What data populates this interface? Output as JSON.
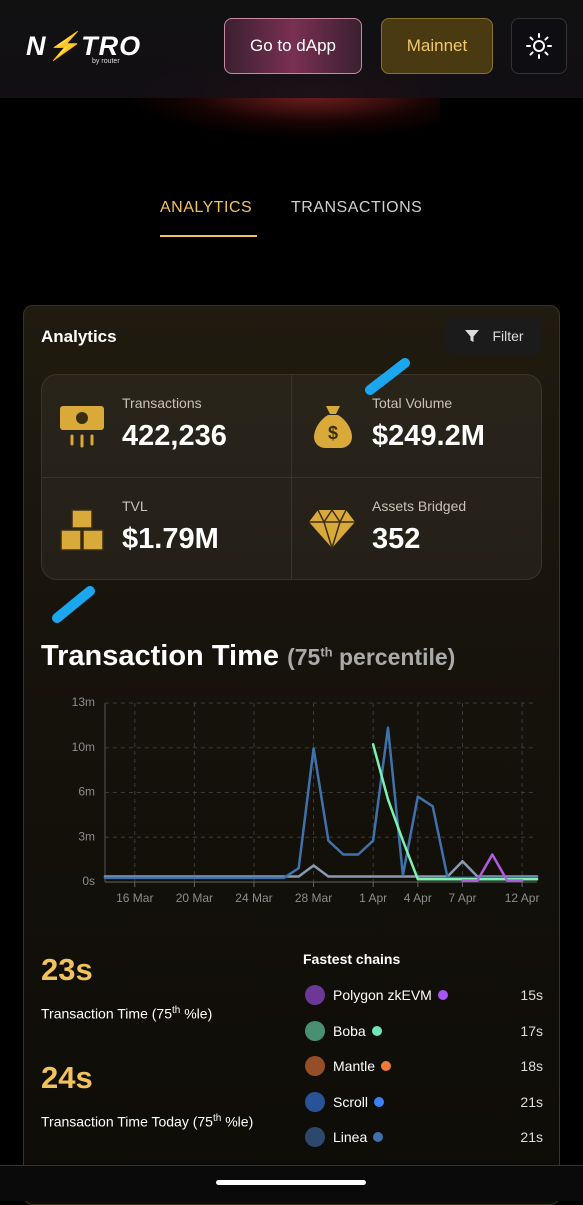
{
  "header": {
    "logo_left": "N",
    "logo_right": "TRO",
    "logo_by": "by",
    "logo_brand": "router",
    "button_dapp": "Go to dApp",
    "button_network": "Mainnet"
  },
  "tabs": [
    "ANALYTICS",
    "TRANSACTIONS"
  ],
  "card": {
    "title": "Analytics",
    "filter": "Filter",
    "stats": [
      {
        "label": "Transactions",
        "value": "422,236"
      },
      {
        "label": "Total Volume",
        "value": "$249.2M"
      },
      {
        "label": "TVL",
        "value": "$1.79M"
      },
      {
        "label": "Assets Bridged",
        "value": "352"
      }
    ]
  },
  "chart_data": {
    "type": "line",
    "title": "Transaction Time",
    "title_note_prefix": "(75",
    "title_sup": "th",
    "title_note_suffix": " percentile)",
    "categories": [
      null,
      null,
      "16 Mar",
      null,
      null,
      null,
      "20 Mar",
      null,
      null,
      null,
      "24 Mar",
      null,
      null,
      null,
      "28 Mar",
      null,
      null,
      null,
      "1 Apr",
      null,
      null,
      "4 Apr",
      null,
      null,
      "7 Apr",
      null,
      null,
      null,
      "12 Apr",
      null
    ],
    "ylim": [
      0,
      13
    ],
    "yticks": [
      {
        "value": 0,
        "label": "0s"
      },
      {
        "value": 3.25,
        "label": "3m"
      },
      {
        "value": 6.5,
        "label": "6m"
      },
      {
        "value": 9.75,
        "label": "10m"
      },
      {
        "value": 13,
        "label": "13m"
      }
    ],
    "grid": true,
    "series": [
      {
        "color": "#8a9bb0",
        "values": [
          0.4,
          0.4,
          0.4,
          0.4,
          0.4,
          0.4,
          0.4,
          0.4,
          0.4,
          0.4,
          0.4,
          0.4,
          0.4,
          0.4,
          1.2,
          0.4,
          0.4,
          0.4,
          0.4,
          0.4,
          0.4,
          0.4,
          0.4,
          0.4,
          1.5,
          0.4,
          0.4,
          0.4,
          0.4,
          0.4
        ]
      },
      {
        "color": "#3f72ad",
        "values": [
          0.3,
          0.3,
          0.3,
          0.3,
          0.3,
          0.3,
          0.3,
          0.3,
          0.3,
          0.3,
          0.3,
          0.3,
          0.3,
          1,
          9.7,
          3,
          2,
          2,
          3,
          11.2,
          0.5,
          6.2,
          5.5,
          0.3,
          0.3,
          0.3,
          0.3,
          0.3,
          0.3,
          0.3
        ]
      },
      {
        "color": "#7ef0b0",
        "values": [
          null,
          null,
          null,
          null,
          null,
          null,
          null,
          null,
          null,
          null,
          null,
          null,
          null,
          null,
          null,
          null,
          null,
          null,
          10,
          6,
          3,
          0.2,
          0.2,
          0.2,
          0.2,
          0.2,
          0.2,
          0.2,
          0.2,
          0.2
        ]
      },
      {
        "color": "#b05ce0",
        "values": [
          null,
          null,
          null,
          null,
          null,
          null,
          null,
          null,
          null,
          null,
          null,
          null,
          null,
          null,
          null,
          null,
          null,
          null,
          null,
          null,
          null,
          null,
          null,
          null,
          0.1,
          0.1,
          2,
          0.1,
          0.1,
          null
        ]
      }
    ]
  },
  "summary": [
    {
      "value": "23s",
      "prefix": "Transaction Time (75",
      "sup": "th",
      "suffix": " %le)"
    },
    {
      "value": "24s",
      "prefix": "Transaction Time Today (75",
      "sup": "th",
      "suffix": " %le)"
    }
  ],
  "fastest": {
    "title": "Fastest chains",
    "rows": [
      {
        "name": "Polygon zkEVM",
        "color": "#a855f7",
        "time": "15s"
      },
      {
        "name": "Boba",
        "color": "#6ee7b7",
        "time": "17s"
      },
      {
        "name": "Mantle",
        "color": "#f07a3a",
        "time": "18s"
      },
      {
        "name": "Scroll",
        "color": "#3b82f6",
        "time": "21s"
      },
      {
        "name": "Linea",
        "color": "#3f72ad",
        "time": "21s"
      }
    ]
  }
}
